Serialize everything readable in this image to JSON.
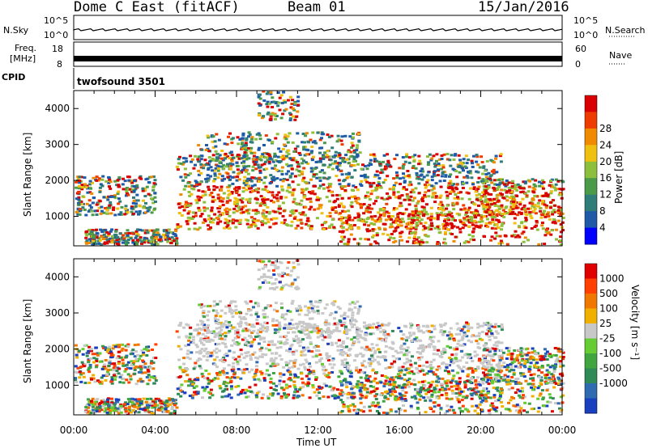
{
  "header": {
    "station": "Dome C East (fitACF)",
    "beam": "Beam 01",
    "date": "15/Jan/2016"
  },
  "top_panels": {
    "nsky_label": "N.Sky",
    "nsky_ticks": [
      "10^5",
      "10^0"
    ],
    "nsearch_label": "N.Search",
    "nsearch_ticks": [
      "10^5",
      "10^0"
    ],
    "freq_label_line1": "Freq.",
    "freq_label_line2": "[MHz]",
    "freq_ticks": [
      "18",
      "8"
    ],
    "nave_label": "Nave",
    "nave_ticks": [
      "60",
      "0"
    ],
    "cpid_label": "CPID",
    "cpid_value": "twofsound 3501"
  },
  "chart_data": [
    {
      "type": "heatmap",
      "name": "power-panel",
      "ylabel": "Slant Range [km]",
      "y_ticks": [
        1000,
        2000,
        3000,
        4000
      ],
      "ylim": [
        180,
        4500
      ],
      "x_ticks": [
        "00:00",
        "04:00",
        "08:00",
        "12:00",
        "16:00",
        "20:00",
        "00:00"
      ],
      "xlim_hours": [
        0,
        24
      ],
      "colorbar": {
        "label": "Power [dB]",
        "ticks": [
          "4",
          "8",
          "12",
          "16",
          "20",
          "24",
          "28"
        ],
        "colors": [
          "#0000ff",
          "#1f5aa8",
          "#2f7d78",
          "#4a9a4a",
          "#8cbf3c",
          "#f0c010",
          "#f08a00",
          "#ee3c00",
          "#d80000"
        ]
      }
    },
    {
      "type": "heatmap",
      "name": "velocity-panel",
      "ylabel": "Slant Range [km]",
      "y_ticks": [
        1000,
        2000,
        3000,
        4000
      ],
      "ylim": [
        180,
        4500
      ],
      "x_ticks": [
        "00:00",
        "04:00",
        "08:00",
        "12:00",
        "16:00",
        "20:00",
        "00:00"
      ],
      "xlim_hours": [
        0,
        24
      ],
      "xlabel": "Time UT",
      "colorbar": {
        "label": "Velocity [m s⁻¹]",
        "ticks": [
          "1000",
          "500",
          "100",
          "25",
          "-25",
          "-100",
          "-500",
          "-1000"
        ],
        "colors": [
          "#1a3fbf",
          "#2f6bb0",
          "#2e8b57",
          "#3fa63f",
          "#66cc33",
          "#c8c8c8",
          "#f0b000",
          "#f07800",
          "#ff4000",
          "#e00000"
        ]
      }
    }
  ]
}
